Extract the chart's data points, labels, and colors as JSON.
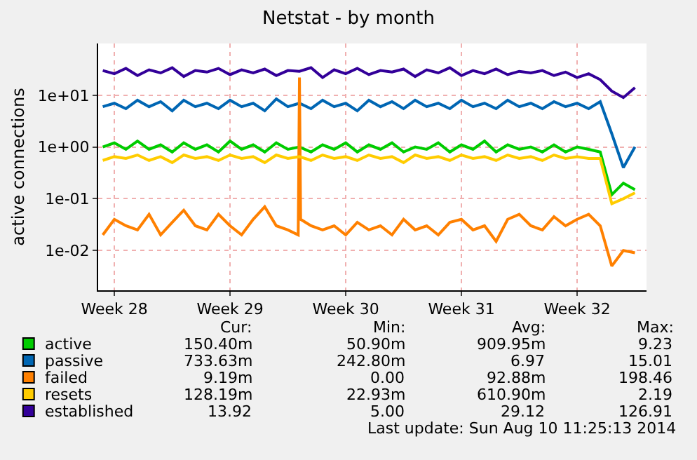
{
  "chart_data": {
    "type": "line",
    "title": "Netstat - by month",
    "ylabel": "active connections",
    "x": [
      "2014-07-06T07:12",
      "2014-07-07T00:00",
      "2014-07-07T16:48",
      "2014-07-08T09:36",
      "2014-07-09T02:24",
      "2014-07-09T19:12",
      "2014-07-10T12:00",
      "2014-07-11T04:48",
      "2014-07-11T21:36",
      "2014-07-12T14:24",
      "2014-07-13T07:12",
      "2014-07-14T00:00",
      "2014-07-14T16:48",
      "2014-07-15T09:36",
      "2014-07-16T02:24",
      "2014-07-16T19:12",
      "2014-07-17T12:00",
      "2014-07-18T04:48",
      "2014-07-18T21:36",
      "2014-07-19T14:24",
      "2014-07-20T07:12",
      "2014-07-21T00:00",
      "2014-07-21T16:48",
      "2014-07-22T09:36",
      "2014-07-23T02:24",
      "2014-07-23T19:12",
      "2014-07-24T12:00",
      "2014-07-25T04:48",
      "2014-07-25T21:36",
      "2014-07-26T14:24",
      "2014-07-27T07:12",
      "2014-07-28T00:00",
      "2014-07-28T16:48",
      "2014-07-29T09:36",
      "2014-07-30T02:24",
      "2014-07-30T19:12",
      "2014-07-31T12:00",
      "2014-08-01T04:48",
      "2014-08-01T21:36",
      "2014-08-02T14:24",
      "2014-08-03T07:12",
      "2014-08-04T00:00",
      "2014-08-04T16:48",
      "2014-08-05T09:36",
      "2014-08-06T02:24",
      "2014-08-06T19:12",
      "2014-08-07T12:00"
    ],
    "series": [
      {
        "name": "active",
        "color": "#00cc00",
        "values": [
          1.0,
          1.2,
          0.9,
          1.3,
          0.9,
          1.1,
          0.8,
          1.2,
          0.9,
          1.1,
          0.8,
          1.3,
          0.9,
          1.1,
          0.8,
          1.2,
          0.9,
          1.0,
          0.8,
          1.1,
          0.9,
          1.2,
          0.8,
          1.1,
          0.9,
          1.2,
          0.8,
          1.0,
          0.9,
          1.2,
          0.8,
          1.1,
          0.9,
          1.3,
          0.8,
          1.1,
          0.9,
          1.0,
          0.8,
          1.1,
          0.8,
          1.0,
          0.9,
          0.8,
          0.12,
          0.2,
          0.15
        ]
      },
      {
        "name": "passive",
        "color": "#0066b3",
        "values": [
          6,
          7,
          5.5,
          8,
          6,
          7.5,
          5,
          8,
          6,
          7,
          5.5,
          8,
          6,
          7,
          5,
          8.5,
          6,
          7,
          5.5,
          8,
          6,
          7,
          5,
          8,
          6,
          7.5,
          5.5,
          8,
          6,
          7,
          5.5,
          8,
          6,
          7,
          5.5,
          8,
          6,
          7,
          5.5,
          7.5,
          6,
          7,
          5.5,
          7.5,
          1.8,
          0.4,
          1.0
        ]
      },
      {
        "name": "failed",
        "color": "#ff8000",
        "x": [
          "2014-07-06T07:12",
          "2014-07-07T00:00",
          "2014-07-07T16:48",
          "2014-07-08T09:36",
          "2014-07-09T02:24",
          "2014-07-09T19:12",
          "2014-07-10T12:00",
          "2014-07-11T04:48",
          "2014-07-11T21:36",
          "2014-07-12T14:24",
          "2014-07-13T07:12",
          "2014-07-14T00:00",
          "2014-07-14T16:48",
          "2014-07-15T09:36",
          "2014-07-16T02:24",
          "2014-07-16T19:12",
          "2014-07-17T12:00",
          "2014-07-18T03:00",
          "2014-07-18T04:48",
          "2014-07-18T06:30",
          "2014-07-18T21:36",
          "2014-07-19T14:24",
          "2014-07-20T07:12",
          "2014-07-21T00:00",
          "2014-07-21T16:48",
          "2014-07-22T09:36",
          "2014-07-23T02:24",
          "2014-07-23T19:12",
          "2014-07-24T12:00",
          "2014-07-25T04:48",
          "2014-07-25T21:36",
          "2014-07-26T14:24",
          "2014-07-27T07:12",
          "2014-07-28T00:00",
          "2014-07-28T16:48",
          "2014-07-29T09:36",
          "2014-07-30T02:24",
          "2014-07-30T19:12",
          "2014-07-31T12:00",
          "2014-08-01T04:48",
          "2014-08-01T21:36",
          "2014-08-02T14:24",
          "2014-08-03T07:12",
          "2014-08-04T00:00",
          "2014-08-04T16:48",
          "2014-08-05T09:36",
          "2014-08-06T02:24",
          "2014-08-06T19:12",
          "2014-08-07T12:00"
        ],
        "values": [
          0.02,
          0.04,
          0.03,
          0.025,
          0.05,
          0.02,
          0.035,
          0.06,
          0.03,
          0.025,
          0.05,
          0.03,
          0.02,
          0.04,
          0.07,
          0.03,
          0.025,
          0.02,
          22,
          0.04,
          0.03,
          0.025,
          0.03,
          0.02,
          0.035,
          0.025,
          0.03,
          0.02,
          0.04,
          0.025,
          0.03,
          0.02,
          0.035,
          0.04,
          0.025,
          0.03,
          0.015,
          0.04,
          0.05,
          0.03,
          0.025,
          0.045,
          0.03,
          0.04,
          0.05,
          0.03,
          0.005,
          0.01,
          0.009
        ]
      },
      {
        "name": "resets",
        "color": "#ffcc00",
        "values": [
          0.55,
          0.65,
          0.6,
          0.7,
          0.55,
          0.65,
          0.5,
          0.7,
          0.6,
          0.65,
          0.55,
          0.7,
          0.6,
          0.65,
          0.5,
          0.7,
          0.6,
          0.65,
          0.55,
          0.7,
          0.6,
          0.65,
          0.55,
          0.7,
          0.6,
          0.65,
          0.5,
          0.7,
          0.6,
          0.65,
          0.55,
          0.7,
          0.6,
          0.65,
          0.55,
          0.7,
          0.6,
          0.65,
          0.55,
          0.7,
          0.6,
          0.65,
          0.6,
          0.6,
          0.08,
          0.1,
          0.13
        ]
      },
      {
        "name": "established",
        "color": "#330099",
        "values": [
          30,
          26,
          33,
          24,
          31,
          27,
          34,
          23,
          30,
          28,
          33,
          25,
          31,
          27,
          32,
          24,
          30,
          29,
          34,
          22,
          31,
          26,
          33,
          25,
          30,
          28,
          32,
          23,
          31,
          27,
          34,
          24,
          30,
          26,
          32,
          25,
          29,
          27,
          30,
          24,
          28,
          22,
          26,
          20,
          12,
          9,
          14
        ]
      }
    ],
    "xlim": [
      "2014-07-06T00:30",
      "2014-08-08T04:48"
    ],
    "xticks": [
      {
        "value": "2014-07-07",
        "label": "Week 28"
      },
      {
        "value": "2014-07-14",
        "label": "Week 29"
      },
      {
        "value": "2014-07-21",
        "label": "Week 30"
      },
      {
        "value": "2014-07-28",
        "label": "Week 31"
      },
      {
        "value": "2014-08-04",
        "label": "Week 32"
      }
    ],
    "ylim": [
      0.0017,
      100
    ],
    "yticks": [
      {
        "value": 10,
        "label": "1e+01"
      },
      {
        "value": 1,
        "label": "1e+00"
      },
      {
        "value": 0.1,
        "label": "1e-01"
      },
      {
        "value": 0.01,
        "label": "1e-02"
      }
    ],
    "log": "y",
    "grid": true,
    "legend": "bottom",
    "line_style": "solid",
    "marker": "none",
    "annotations": [
      "Cur:",
      "Min:",
      "Avg:",
      "Max:",
      "150.40m",
      "50.90m",
      "909.95m",
      "9.23",
      "733.63m",
      "242.80m",
      "6.97",
      "15.01",
      "9.19m",
      "0.00",
      "92.88m",
      "198.46",
      "128.19m",
      "22.93m",
      "610.90m",
      "2.19",
      "13.92",
      "5.00",
      "29.12",
      "126.91",
      "Last update: Sun Aug 10 11:25:13 2014"
    ]
  }
}
